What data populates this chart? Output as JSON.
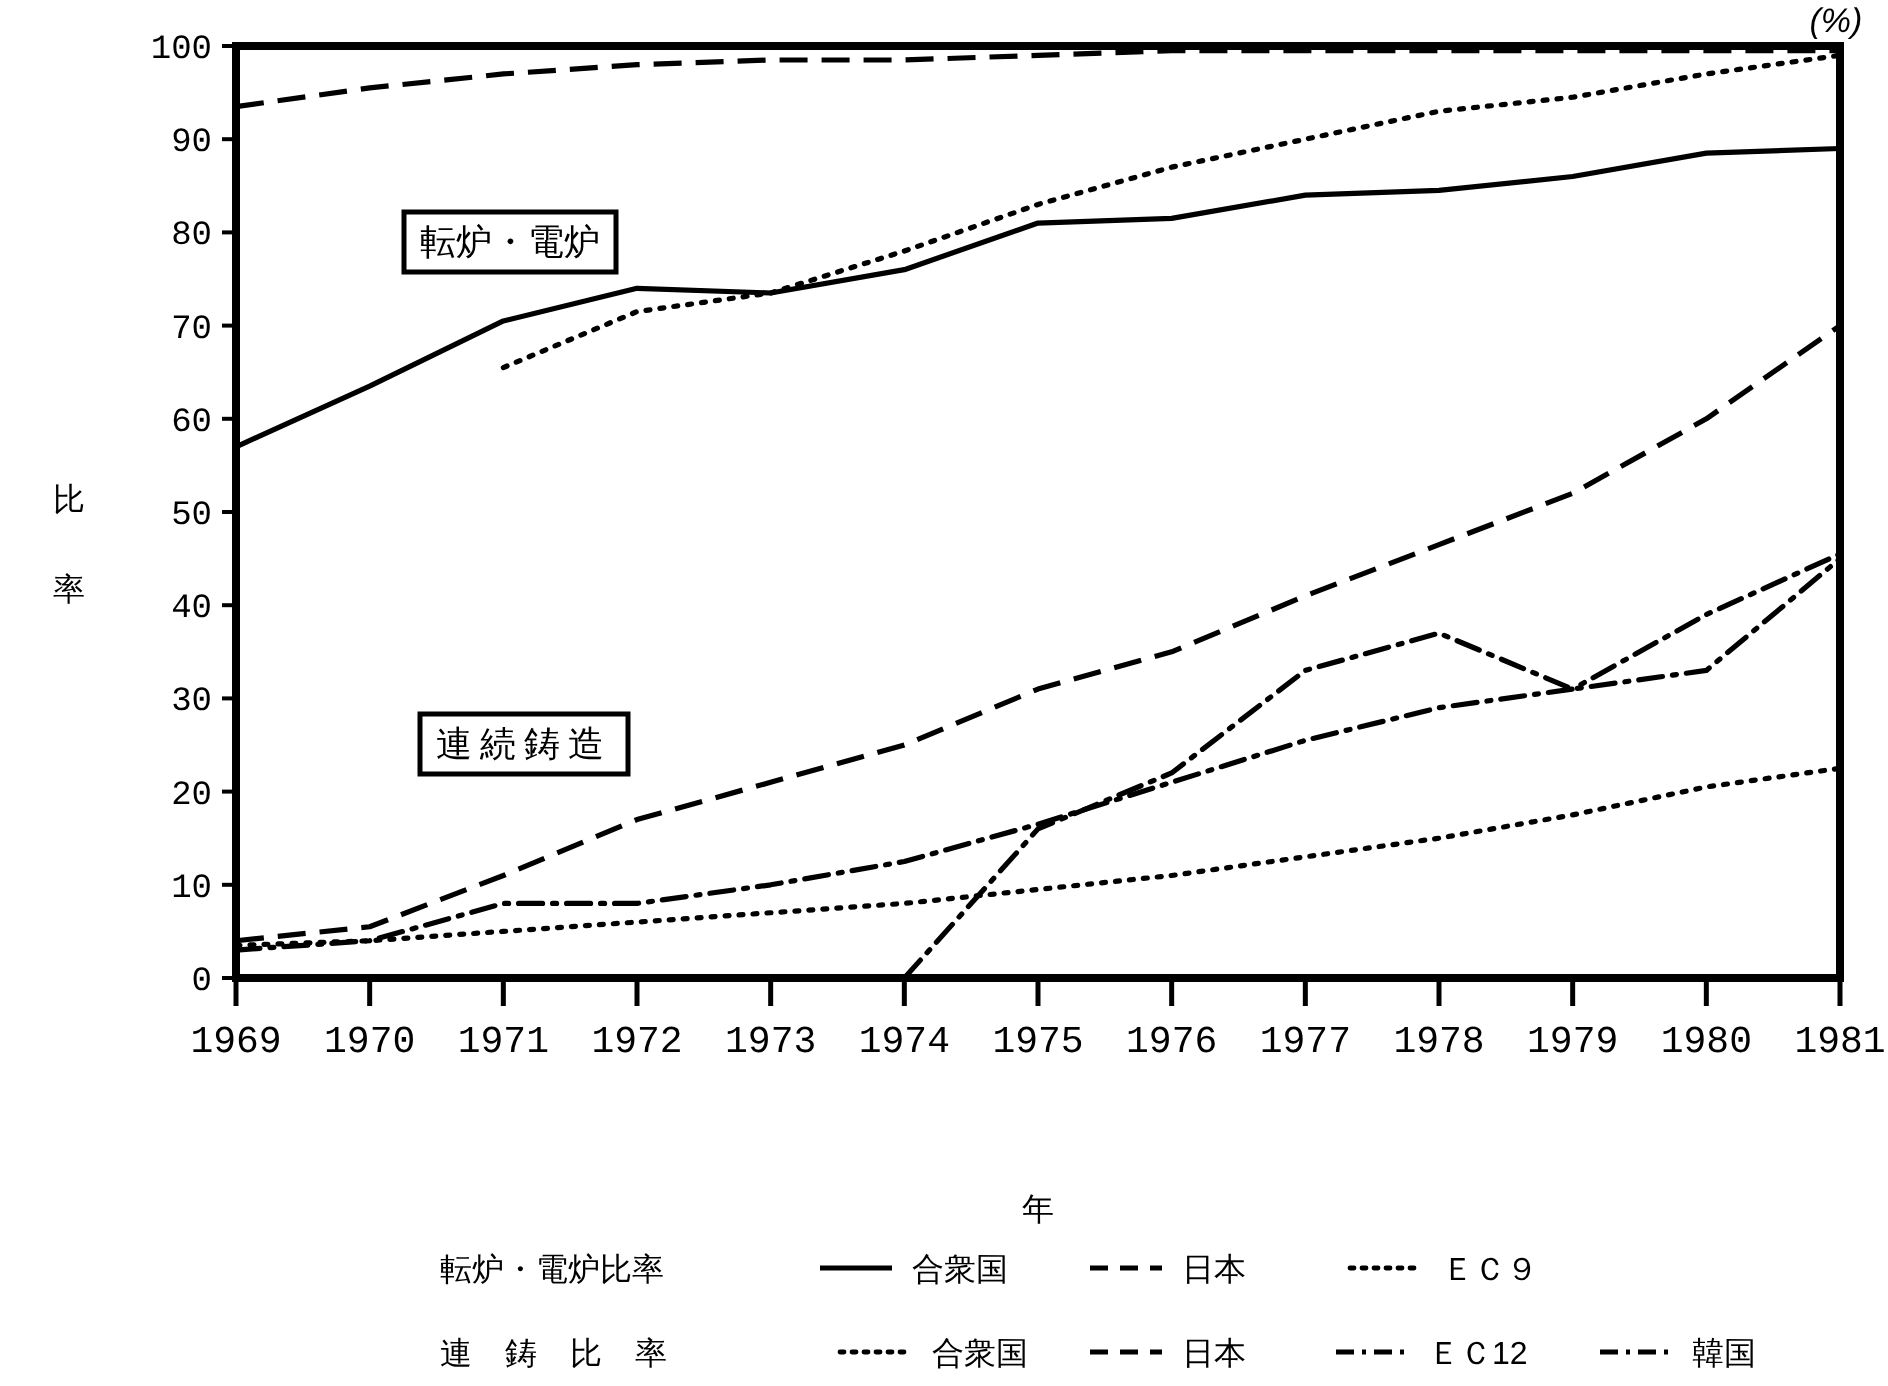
{
  "chart_data": {
    "type": "line",
    "ylabel": "比率",
    "xlabel": "年",
    "annotations": [
      "(%)",
      "転炉・電炉",
      "連続鋳造",
      "転炉・電炉比率",
      "連 鋳 比 率"
    ],
    "xlim": [
      1969,
      1981
    ],
    "xticks": [
      1969,
      1970,
      1971,
      1972,
      1973,
      1974,
      1975,
      1976,
      1977,
      1978,
      1979,
      1980,
      1981
    ],
    "ylim": [
      0,
      100
    ],
    "yticks": [
      0,
      10,
      20,
      30,
      40,
      50,
      60,
      70,
      80,
      90,
      100
    ],
    "grid": false,
    "legend": "bottom",
    "x": [
      1969,
      1970,
      1971,
      1972,
      1973,
      1974,
      1975,
      1976,
      1977,
      1978,
      1979,
      1980,
      1981
    ],
    "series": [
      {
        "name": "合衆国",
        "color": "#000000",
        "line_style": "solid",
        "values": [
          57,
          63.5,
          70.5,
          74,
          73.5,
          76,
          81,
          81.5,
          84,
          84.5,
          86,
          88.5,
          89
        ]
      },
      {
        "name": "日本",
        "color": "#000000",
        "line_style": "dashed",
        "values": [
          93.5,
          95.5,
          97,
          98,
          98.5,
          98.5,
          99,
          99.5,
          99.5,
          99.5,
          99.5,
          99.5,
          99.5
        ]
      },
      {
        "name": "ＥＣ９",
        "color": "#000000",
        "line_style": "dotted",
        "values": [
          null,
          null,
          65.5,
          71.5,
          73.5,
          78,
          83,
          87,
          90,
          93,
          94.5,
          97,
          99
        ]
      },
      {
        "name": "合衆国",
        "color": "#000000",
        "line_style": "dotted",
        "values": [
          3.5,
          4,
          5,
          6,
          7,
          8,
          9.5,
          11,
          13,
          15,
          17.5,
          20.5,
          22.5
        ]
      },
      {
        "name": "日本",
        "color": "#000000",
        "line_style": "dashed",
        "values": [
          4,
          5.5,
          11,
          17,
          21,
          25,
          31,
          35,
          41,
          46.5,
          52,
          60,
          70
        ]
      },
      {
        "name": "ＥＣ12",
        "color": "#000000",
        "line_style": "dashdot",
        "values": [
          3,
          4,
          8,
          8,
          10,
          12.5,
          16.5,
          21,
          25.5,
          29,
          31,
          39,
          45.5
        ]
      },
      {
        "name": "韓国",
        "color": "#000000",
        "line_style": "dashdot",
        "values": [
          null,
          null,
          null,
          null,
          null,
          0,
          16,
          22,
          33,
          37,
          31,
          33,
          45
        ]
      }
    ]
  }
}
